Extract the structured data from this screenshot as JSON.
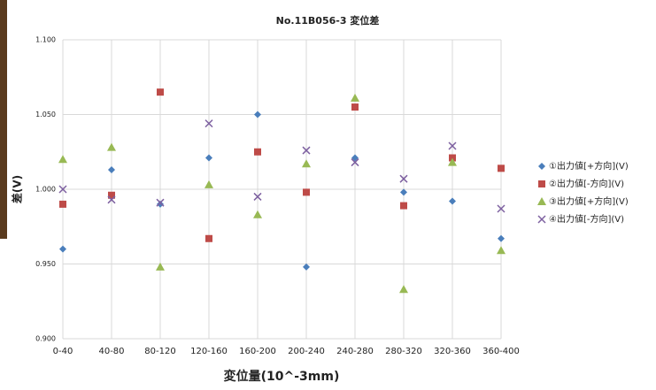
{
  "chart_data": {
    "type": "scatter",
    "title": "No.11B056-3 変位差",
    "x_label": "変位量(10^-3mm)",
    "y_label": "差(V)",
    "categories": [
      "0-40",
      "40-80",
      "80-120",
      "120-160",
      "160-200",
      "200-240",
      "240-280",
      "280-320",
      "320-360",
      "360-400"
    ],
    "series": [
      {
        "name": "①出力値[+方向](V)",
        "color": "#4a7ebb",
        "marker": "diamond",
        "values": [
          0.96,
          1.013,
          0.99,
          1.021,
          1.05,
          0.948,
          1.021,
          0.998,
          0.992,
          0.967
        ]
      },
      {
        "name": "②出力値[-方向](V)",
        "color": "#be4b48",
        "marker": "square",
        "values": [
          0.99,
          0.996,
          1.065,
          0.967,
          1.025,
          0.998,
          1.055,
          0.989,
          1.021,
          1.014
        ]
      },
      {
        "name": "③出力値[+方向](V)",
        "color": "#98b954",
        "marker": "triangle",
        "values": [
          1.02,
          1.028,
          0.948,
          1.003,
          0.983,
          1.017,
          1.061,
          0.933,
          1.018,
          0.959
        ]
      },
      {
        "name": "④出力値[-方向](V)",
        "color": "#7d60a0",
        "marker": "x",
        "values": [
          1.0,
          0.993,
          0.991,
          1.044,
          0.995,
          1.026,
          1.018,
          1.007,
          1.029,
          0.987
        ]
      }
    ],
    "ylim": [
      0.9,
      1.1
    ],
    "yticks": [
      {
        "value": 0.9,
        "label": "0.900"
      },
      {
        "value": 0.95,
        "label": "0.950"
      },
      {
        "value": 1.0,
        "label": "1.000"
      },
      {
        "value": 1.05,
        "label": "1.050"
      },
      {
        "value": 1.1,
        "label": "1.100"
      }
    ],
    "grid": true,
    "legend": "right"
  }
}
